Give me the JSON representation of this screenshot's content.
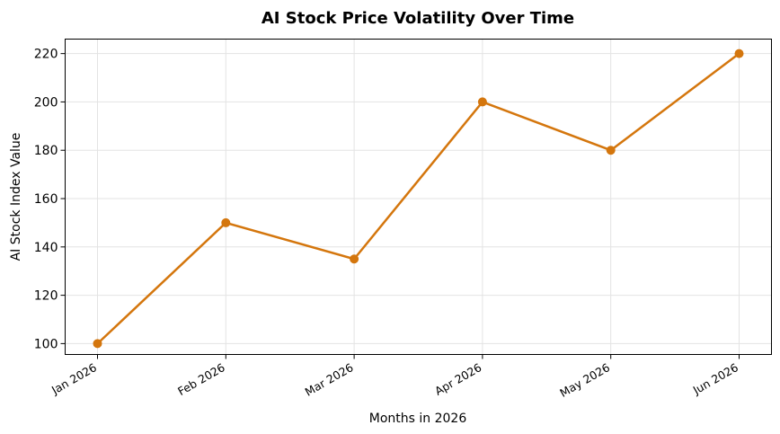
{
  "chart_data": {
    "type": "line",
    "title": "AI Stock Price Volatility Over Time",
    "xlabel": "Months in 2026",
    "ylabel": "AI Stock Index Value",
    "categories": [
      "Jan 2026",
      "Feb 2026",
      "Mar 2026",
      "Apr 2026",
      "May 2026",
      "Jun 2026"
    ],
    "series": [
      {
        "values": [
          100,
          150,
          135,
          200,
          180,
          220
        ]
      }
    ],
    "yticks": [
      100,
      120,
      140,
      160,
      180,
      200,
      220
    ],
    "ylim": [
      95.5,
      226
    ],
    "grid": true,
    "line_color": "#d4760d"
  }
}
